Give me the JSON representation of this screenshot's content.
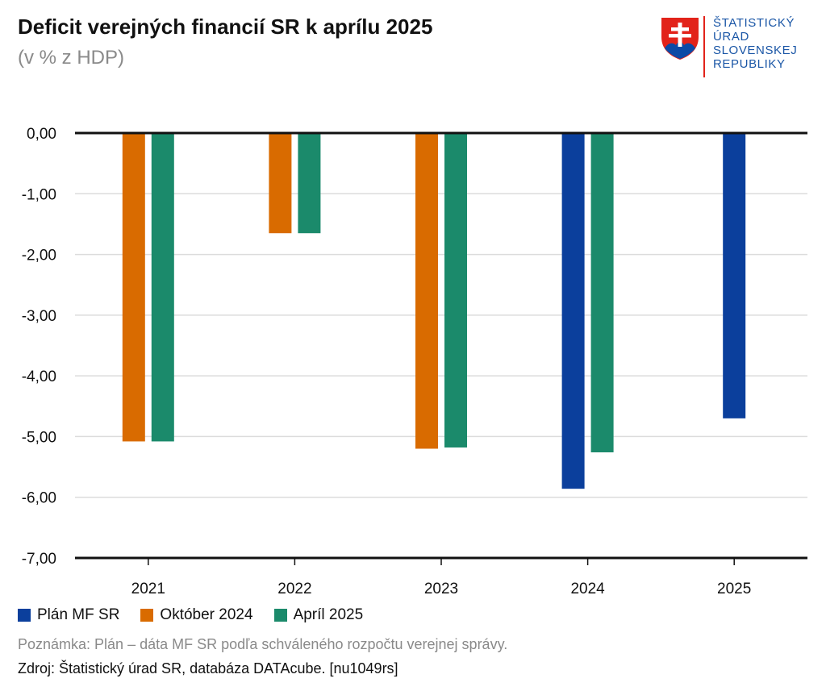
{
  "header": {
    "title": "Deficit verejných financií SR k aprílu 2025",
    "subtitle": "(v % z HDP)"
  },
  "logo": {
    "name": "slovak-statistical-office-logo",
    "lines": [
      "ŠTATISTICKÝ",
      "ÚRAD",
      "SLOVENSKEJ",
      "REPUBLIKY"
    ],
    "text_color": "#1a56a6",
    "shield_red": "#e2231a",
    "shield_blue": "#0b4aa6"
  },
  "chart_data": {
    "type": "bar",
    "categories": [
      "2021",
      "2022",
      "2023",
      "2024",
      "2025"
    ],
    "ylim": [
      -7,
      0
    ],
    "yticks": [
      "0,00",
      "-1,00",
      "-2,00",
      "-3,00",
      "-4,00",
      "-5,00",
      "-6,00",
      "-7,00"
    ],
    "ytick_values": [
      0,
      -1,
      -2,
      -3,
      -4,
      -5,
      -6,
      -7
    ],
    "grid": true,
    "legend_position": "bottom-left",
    "series": [
      {
        "name": "Plán MF SR",
        "color": "#0b3f9c",
        "values": [
          null,
          null,
          null,
          -5.86,
          -4.7
        ]
      },
      {
        "name": "Október 2024",
        "color": "#d96b00",
        "values": [
          -5.08,
          -1.65,
          -5.2,
          null,
          null
        ]
      },
      {
        "name": "Apríl 2025",
        "color": "#1b8a6b",
        "values": [
          -5.08,
          -1.65,
          -5.18,
          -5.26,
          null
        ]
      }
    ]
  },
  "footer": {
    "note": "Poznámka: Plán – dáta MF SR podľa schváleného rozpočtu verejnej správy.",
    "source": "Zdroj: Štatistický úrad SR, databáza DATAcube. [nu1049rs]"
  }
}
